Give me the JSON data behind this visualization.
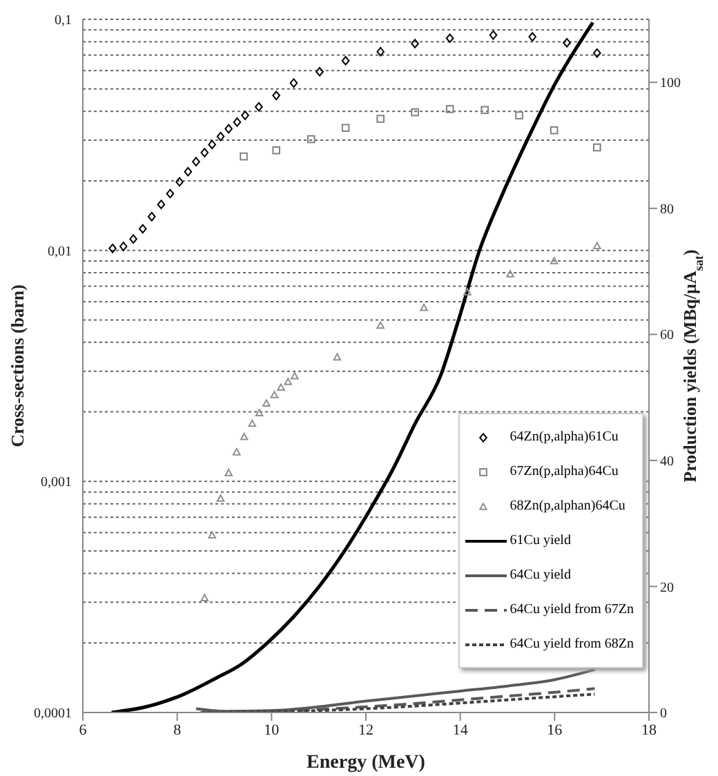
{
  "chart_data": {
    "type": "scatter",
    "xlabel": "Energy (MeV)",
    "ylabel": "Cross-sections (barn)",
    "y2label": "Production yields (MBq/µA$_{sat}$)",
    "xlim": [
      6,
      18
    ],
    "xticks": [
      6,
      8,
      10,
      12,
      14,
      16,
      18
    ],
    "log": "y",
    "ylim": [
      0.0001,
      0.1
    ],
    "yticks": [
      {
        "value": 0.0001,
        "label": "0,0001"
      },
      {
        "value": 0.0002,
        "label": null
      },
      {
        "value": 0.0003,
        "label": null
      },
      {
        "value": 0.0004,
        "label": null
      },
      {
        "value": 0.0005,
        "label": null
      },
      {
        "value": 0.0006,
        "label": null
      },
      {
        "value": 0.0007,
        "label": null
      },
      {
        "value": 0.0008,
        "label": null
      },
      {
        "value": 0.0009,
        "label": null
      },
      {
        "value": 0.001,
        "label": "0,001"
      },
      {
        "value": 0.002,
        "label": null
      },
      {
        "value": 0.003,
        "label": null
      },
      {
        "value": 0.004,
        "label": null
      },
      {
        "value": 0.005,
        "label": null
      },
      {
        "value": 0.006,
        "label": null
      },
      {
        "value": 0.007,
        "label": null
      },
      {
        "value": 0.008,
        "label": null
      },
      {
        "value": 0.009,
        "label": null
      },
      {
        "value": 0.01,
        "label": "0,01"
      },
      {
        "value": 0.02,
        "label": null
      },
      {
        "value": 0.03,
        "label": null
      },
      {
        "value": 0.04,
        "label": null
      },
      {
        "value": 0.05,
        "label": null
      },
      {
        "value": 0.06,
        "label": null
      },
      {
        "value": 0.07,
        "label": null
      },
      {
        "value": 0.08,
        "label": null
      },
      {
        "value": 0.09,
        "label": null
      },
      {
        "value": 0.1,
        "label": "0,1"
      }
    ],
    "y2lim": [
      0,
      110
    ],
    "y2ticks": [
      0,
      20,
      40,
      60,
      80,
      100
    ],
    "grid": "y",
    "legend": "bottom right",
    "series": [
      {
        "name": "64Zn(p,alpha)61Cu",
        "type": "scatter",
        "marker": "diamond",
        "color": "#000000",
        "x": [
          6.63,
          6.86,
          7.07,
          7.27,
          7.46,
          7.66,
          7.85,
          8.05,
          8.23,
          8.4,
          8.58,
          8.74,
          8.92,
          9.09,
          9.27,
          9.44,
          9.73,
          10.1,
          10.47,
          11.02,
          11.57,
          12.31,
          13.04,
          13.78,
          14.7,
          15.53,
          16.26,
          16.9
        ],
        "values": [
          0.0102,
          0.0104,
          0.0112,
          0.0124,
          0.014,
          0.0158,
          0.0176,
          0.0198,
          0.0219,
          0.0242,
          0.0265,
          0.0287,
          0.0311,
          0.0336,
          0.0359,
          0.0384,
          0.0418,
          0.0468,
          0.053,
          0.0593,
          0.0662,
          0.0724,
          0.0785,
          0.0828,
          0.0855,
          0.084,
          0.0792,
          0.0714
        ]
      },
      {
        "name": "67Zn(p,alpha)64Cu",
        "type": "scatter",
        "marker": "square",
        "color": "#808080",
        "x": [
          9.41,
          10.1,
          10.84,
          11.57,
          12.31,
          13.04,
          13.78,
          14.52,
          15.25,
          15.99,
          16.9
        ],
        "values": [
          0.0255,
          0.0271,
          0.0303,
          0.0339,
          0.0371,
          0.0396,
          0.0409,
          0.0405,
          0.0384,
          0.0331,
          0.0279
        ]
      },
      {
        "name": "68Zn(p,alphan)64Cu",
        "type": "scatter",
        "marker": "triangle",
        "color": "#909090",
        "x": [
          8.58,
          8.74,
          8.92,
          9.09,
          9.26,
          9.42,
          9.59,
          9.74,
          9.89,
          10.06,
          10.2,
          10.35,
          10.49,
          11.39,
          12.31,
          13.23,
          14.15,
          15.06,
          15.99,
          16.9
        ],
        "values": [
          0.000313,
          0.000585,
          0.000844,
          0.00109,
          0.00134,
          0.00156,
          0.00178,
          0.00198,
          0.00218,
          0.00237,
          0.00255,
          0.0027,
          0.00286,
          0.00345,
          0.00473,
          0.00565,
          0.0066,
          0.0079,
          0.009,
          0.01045
        ]
      },
      {
        "name": "61Cu yield",
        "type": "line",
        "axis": "y2",
        "line_style": "solid",
        "marker": "none",
        "color": "#000000",
        "x": [
          6.61,
          7.34,
          8.08,
          8.81,
          9.37,
          9.92,
          10.47,
          11.02,
          11.57,
          12.12,
          12.58,
          13.04,
          13.59,
          13.96,
          14.42,
          14.88,
          15.43,
          15.99,
          16.81
        ],
        "values": [
          0,
          0.9,
          2.7,
          5.4,
          7.7,
          11.1,
          15.2,
          20.1,
          25.9,
          32.6,
          38.7,
          45.8,
          53.6,
          62.2,
          73.6,
          82,
          91,
          99.5,
          109.5
        ]
      },
      {
        "name": "64Cu yield",
        "type": "line",
        "axis": "y2",
        "line_style": "solid",
        "marker": "none",
        "color": "#595959",
        "x": [
          8.4,
          9,
          10,
          11,
          12,
          13,
          14,
          15,
          16,
          16.85
        ],
        "values": [
          0.6,
          0.2,
          0.3,
          0.9,
          1.8,
          2.6,
          3.4,
          4.2,
          5.2,
          6.8
        ]
      },
      {
        "name": "64Cu yield from 67Zn",
        "type": "line",
        "axis": "y2",
        "line_style": "dashed",
        "marker": "none",
        "color": "#595959",
        "x": [
          8.5,
          10,
          11,
          12,
          13,
          14,
          15,
          16,
          16.85
        ],
        "values": [
          0,
          0.1,
          0.5,
          0.9,
          1.4,
          2.0,
          2.6,
          3.2,
          3.8
        ]
      },
      {
        "name": "64Cu yield from 68Zn",
        "type": "line",
        "axis": "y2",
        "line_style": "dotted",
        "marker": "none",
        "color": "#404040",
        "x": [
          8.5,
          10,
          11,
          12,
          13,
          14,
          15,
          16,
          16.85
        ],
        "values": [
          0,
          0.1,
          0.3,
          0.6,
          1.0,
          1.5,
          2.0,
          2.5,
          2.9
        ]
      }
    ]
  }
}
